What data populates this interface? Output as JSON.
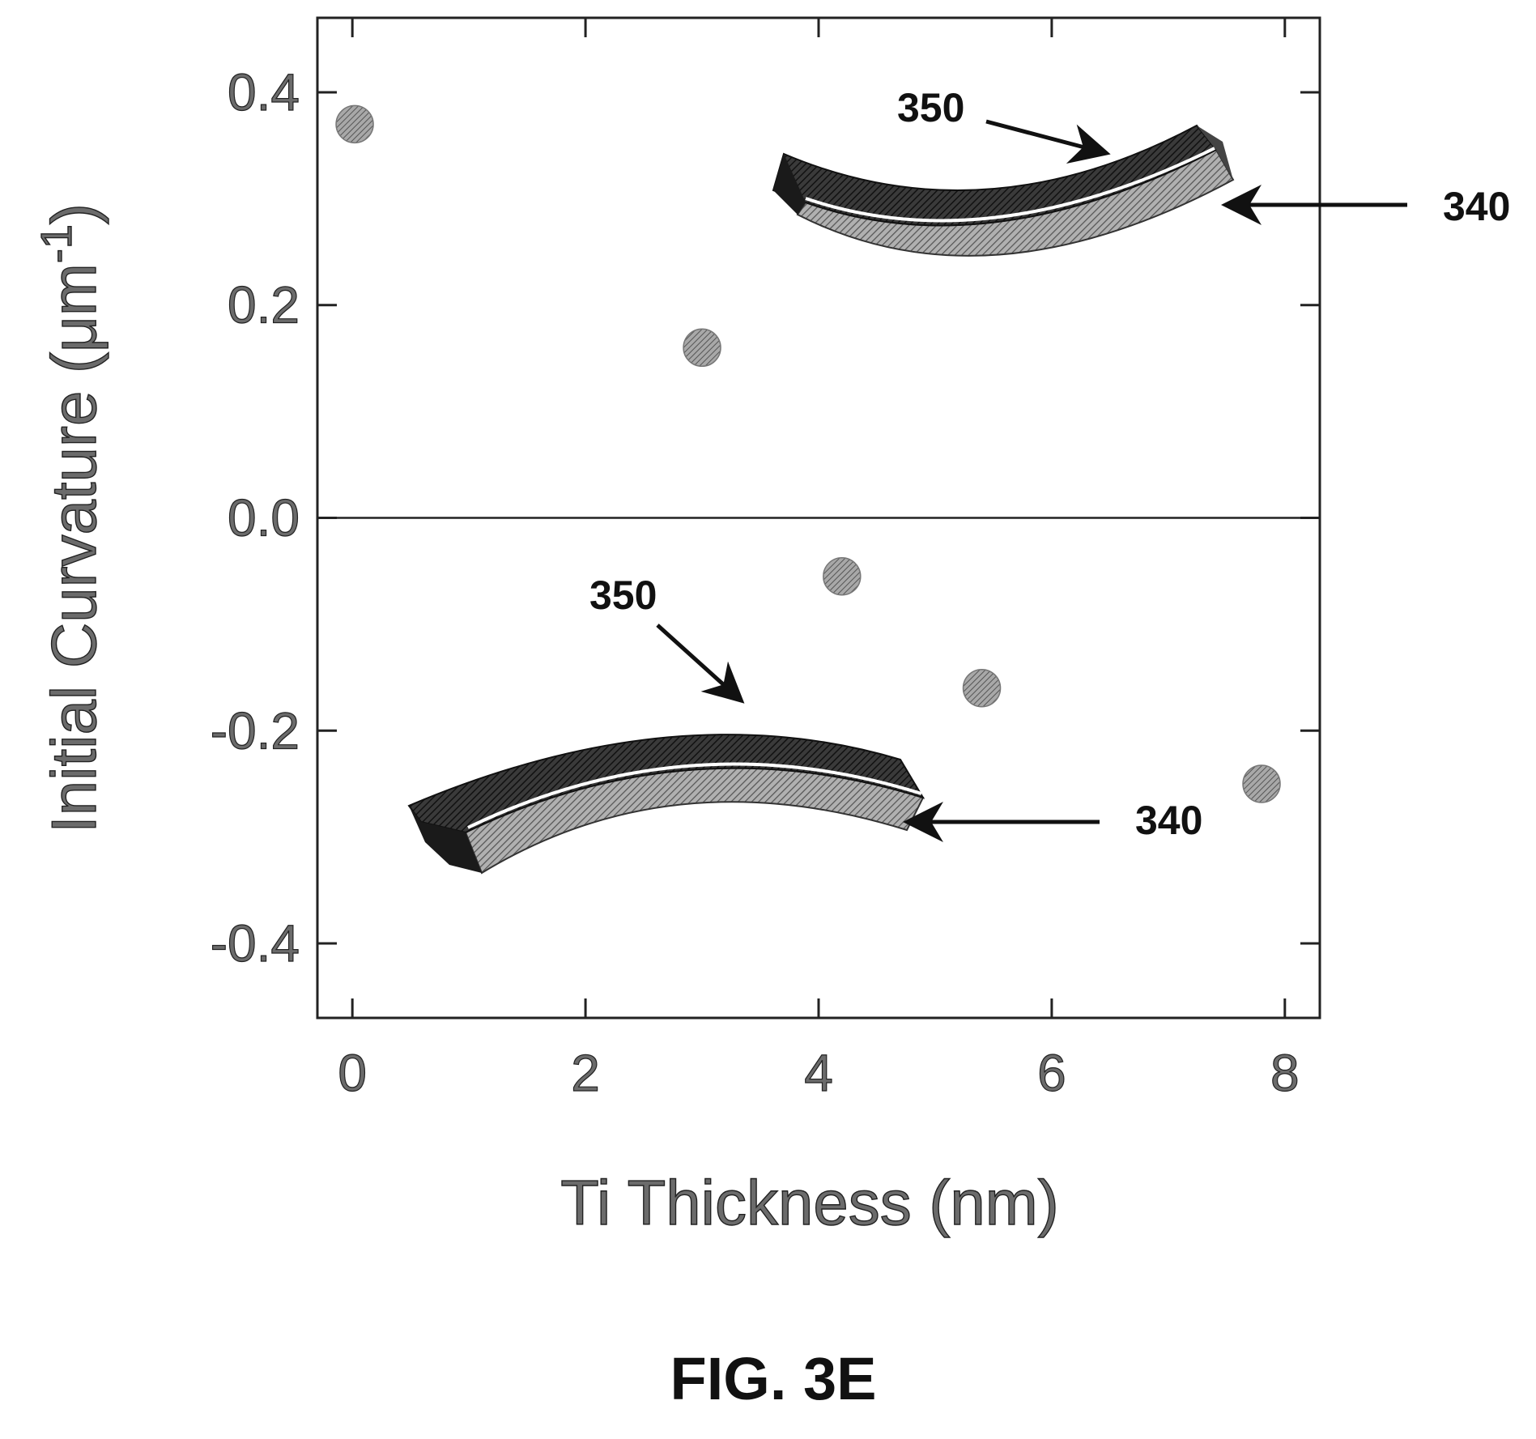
{
  "figure_label": "FIG. 3E",
  "chart_data": {
    "type": "scatter",
    "xlabel": "Ti Thickness (nm)",
    "ylabel_main": "Initial Curvature (μm",
    "ylabel_sup": "-1",
    "ylabel_close": ")",
    "xlim": [
      -0.3,
      8.3
    ],
    "ylim": [
      -0.47,
      0.47
    ],
    "x_ticks": [
      0,
      2,
      4,
      6,
      8
    ],
    "x_tick_labels": [
      "0",
      "2",
      "4",
      "6",
      "8"
    ],
    "y_ticks": [
      0.4,
      0.2,
      0.0,
      -0.2,
      -0.4
    ],
    "y_tick_labels": [
      "0.4",
      "0.2",
      "0.0",
      "-0.2",
      "-0.4"
    ],
    "zero_line": true,
    "grid": false,
    "points": [
      {
        "x": 0.02,
        "y": 0.37
      },
      {
        "x": 3.0,
        "y": 0.16
      },
      {
        "x": 4.2,
        "y": -0.055
      },
      {
        "x": 5.4,
        "y": -0.16
      },
      {
        "x": 7.8,
        "y": -0.25
      }
    ],
    "annotations": {
      "upper_top_layer": "350",
      "upper_bottom_layer": "340",
      "lower_top_layer": "350",
      "lower_bottom_layer": "340"
    },
    "colors": {
      "marker": "#8a8a8a",
      "dark_layer": "#2e2e2e",
      "light_layer": "#8c8c8c"
    }
  }
}
